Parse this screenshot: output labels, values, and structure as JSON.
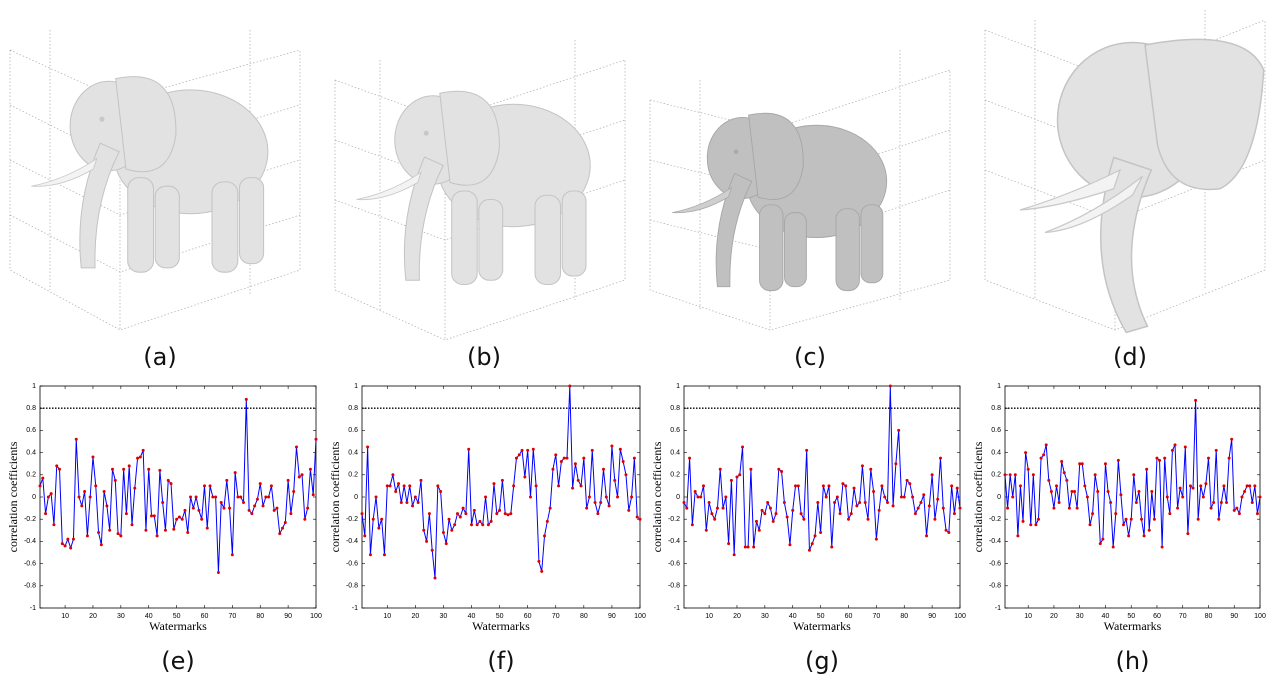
{
  "renders": [
    {
      "caption": "(a)"
    },
    {
      "caption": "(b)"
    },
    {
      "caption": "(c)"
    },
    {
      "caption": "(d)"
    }
  ],
  "chart_data": [
    {
      "type": "line",
      "caption": "(e)",
      "xlabel": "Watermarks",
      "ylabel": "correlation coefficients",
      "x": [
        1,
        2,
        3,
        4,
        5,
        6,
        7,
        8,
        9,
        10,
        11,
        12,
        13,
        14,
        15,
        16,
        17,
        18,
        19,
        20,
        21,
        22,
        23,
        24,
        25,
        26,
        27,
        28,
        29,
        30,
        31,
        32,
        33,
        34,
        35,
        36,
        37,
        38,
        39,
        40,
        41,
        42,
        43,
        44,
        45,
        46,
        47,
        48,
        49,
        50,
        51,
        52,
        53,
        54,
        55,
        56,
        57,
        58,
        59,
        60,
        61,
        62,
        63,
        64,
        65,
        66,
        67,
        68,
        69,
        70,
        71,
        72,
        73,
        74,
        75,
        76,
        77,
        78,
        79,
        80,
        81,
        82,
        83,
        84,
        85,
        86,
        87,
        88,
        89,
        90,
        91,
        92,
        93,
        94,
        95,
        96,
        97,
        98,
        99,
        100
      ],
      "series": [
        {
          "color": "#0000ff",
          "marker_color": "#dd0000",
          "values": [
            0.1,
            0.17,
            -0.15,
            0.0,
            0.03,
            -0.25,
            0.28,
            0.25,
            -0.42,
            -0.44,
            -0.38,
            -0.46,
            -0.38,
            0.52,
            0.0,
            -0.08,
            0.05,
            -0.35,
            0.0,
            0.36,
            0.1,
            -0.32,
            -0.43,
            0.05,
            -0.08,
            -0.3,
            0.25,
            0.15,
            -0.33,
            -0.35,
            0.25,
            -0.15,
            0.28,
            -0.25,
            0.08,
            0.35,
            0.36,
            0.42,
            -0.3,
            0.25,
            -0.17,
            -0.17,
            -0.35,
            0.24,
            -0.05,
            -0.3,
            0.15,
            0.12,
            -0.29,
            -0.2,
            -0.18,
            -0.2,
            -0.12,
            -0.32,
            0.0,
            -0.1,
            0.0,
            -0.12,
            -0.2,
            0.1,
            -0.28,
            0.1,
            0.0,
            0.0,
            -0.68,
            -0.05,
            -0.1,
            0.15,
            -0.1,
            -0.52,
            0.22,
            0.0,
            0.0,
            -0.05,
            0.88,
            -0.12,
            -0.15,
            -0.08,
            -0.02,
            0.12,
            -0.08,
            0.0,
            0.0,
            0.1,
            -0.12,
            -0.1,
            -0.33,
            -0.28,
            -0.23,
            0.15,
            -0.15,
            0.05,
            0.45,
            0.18,
            0.2,
            -0.2,
            -0.1,
            0.25,
            0.02,
            0.52
          ]
        }
      ],
      "threshold": 0.8,
      "xlim": [
        1,
        100
      ],
      "xticks": [
        10,
        20,
        30,
        40,
        50,
        60,
        70,
        80,
        90,
        100
      ],
      "ylim": [
        -1,
        1
      ],
      "yticks": [
        -1,
        -0.8,
        -0.6,
        -0.4,
        -0.2,
        0,
        0.2,
        0.4,
        0.6,
        0.8,
        1
      ]
    },
    {
      "type": "line",
      "caption": "(f)",
      "xlabel": "Watermarks",
      "ylabel": "correlation coefficients",
      "x": [
        1,
        2,
        3,
        4,
        5,
        6,
        7,
        8,
        9,
        10,
        11,
        12,
        13,
        14,
        15,
        16,
        17,
        18,
        19,
        20,
        21,
        22,
        23,
        24,
        25,
        26,
        27,
        28,
        29,
        30,
        31,
        32,
        33,
        34,
        35,
        36,
        37,
        38,
        39,
        40,
        41,
        42,
        43,
        44,
        45,
        46,
        47,
        48,
        49,
        50,
        51,
        52,
        53,
        54,
        55,
        56,
        57,
        58,
        59,
        60,
        61,
        62,
        63,
        64,
        65,
        66,
        67,
        68,
        69,
        70,
        71,
        72,
        73,
        74,
        75,
        76,
        77,
        78,
        79,
        80,
        81,
        82,
        83,
        84,
        85,
        86,
        87,
        88,
        89,
        90,
        91,
        92,
        93,
        94,
        95,
        96,
        97,
        98,
        99,
        100
      ],
      "series": [
        {
          "color": "#0000ff",
          "marker_color": "#dd0000",
          "values": [
            -0.15,
            -0.35,
            0.45,
            -0.52,
            -0.2,
            0.0,
            -0.28,
            -0.2,
            -0.52,
            0.1,
            0.1,
            0.2,
            0.05,
            0.12,
            -0.05,
            0.1,
            -0.05,
            0.1,
            -0.08,
            0.0,
            -0.05,
            0.15,
            -0.3,
            -0.4,
            -0.15,
            -0.48,
            -0.73,
            0.1,
            0.05,
            -0.32,
            -0.42,
            -0.2,
            -0.3,
            -0.25,
            -0.15,
            -0.18,
            -0.1,
            -0.15,
            0.43,
            -0.25,
            -0.12,
            -0.25,
            -0.22,
            -0.25,
            0.0,
            -0.25,
            -0.22,
            0.12,
            -0.15,
            -0.12,
            0.15,
            -0.15,
            -0.16,
            -0.15,
            0.1,
            0.35,
            0.38,
            0.42,
            0.18,
            0.42,
            0.0,
            0.43,
            0.1,
            -0.58,
            -0.67,
            -0.35,
            -0.22,
            -0.1,
            0.25,
            0.38,
            0.1,
            0.32,
            0.35,
            0.35,
            1.0,
            0.08,
            0.3,
            0.15,
            0.1,
            0.35,
            -0.1,
            0.0,
            0.42,
            -0.05,
            -0.15,
            -0.05,
            0.25,
            0.0,
            -0.08,
            0.46,
            0.15,
            0.0,
            0.43,
            0.32,
            0.2,
            -0.12,
            0.0,
            0.35,
            -0.18,
            -0.2
          ]
        }
      ],
      "threshold": 0.8,
      "xlim": [
        1,
        100
      ],
      "xticks": [
        10,
        20,
        30,
        40,
        50,
        60,
        70,
        80,
        90,
        100
      ],
      "ylim": [
        -1,
        1
      ],
      "yticks": [
        -1,
        -0.8,
        -0.6,
        -0.4,
        -0.2,
        0,
        0.2,
        0.4,
        0.6,
        0.8,
        1
      ]
    },
    {
      "type": "line",
      "caption": "(g)",
      "xlabel": "Watermarks",
      "ylabel": "correlation coefficients",
      "x": [
        1,
        2,
        3,
        4,
        5,
        6,
        7,
        8,
        9,
        10,
        11,
        12,
        13,
        14,
        15,
        16,
        17,
        18,
        19,
        20,
        21,
        22,
        23,
        24,
        25,
        26,
        27,
        28,
        29,
        30,
        31,
        32,
        33,
        34,
        35,
        36,
        37,
        38,
        39,
        40,
        41,
        42,
        43,
        44,
        45,
        46,
        47,
        48,
        49,
        50,
        51,
        52,
        53,
        54,
        55,
        56,
        57,
        58,
        59,
        60,
        61,
        62,
        63,
        64,
        65,
        66,
        67,
        68,
        69,
        70,
        71,
        72,
        73,
        74,
        75,
        76,
        77,
        78,
        79,
        80,
        81,
        82,
        83,
        84,
        85,
        86,
        87,
        88,
        89,
        90,
        91,
        92,
        93,
        94,
        95,
        96,
        97,
        98,
        99,
        100
      ],
      "series": [
        {
          "color": "#0000ff",
          "marker_color": "#dd0000",
          "values": [
            -0.05,
            -0.1,
            0.35,
            -0.25,
            0.05,
            0.0,
            0.0,
            0.1,
            -0.3,
            -0.05,
            -0.15,
            -0.2,
            -0.1,
            0.25,
            -0.1,
            0.0,
            -0.42,
            0.15,
            -0.52,
            0.18,
            0.2,
            0.45,
            -0.45,
            -0.45,
            0.25,
            -0.45,
            -0.22,
            -0.3,
            -0.12,
            -0.15,
            -0.05,
            -0.1,
            -0.22,
            -0.15,
            0.25,
            0.23,
            -0.05,
            -0.18,
            -0.43,
            -0.12,
            0.1,
            0.1,
            -0.15,
            -0.2,
            0.42,
            -0.48,
            -0.42,
            -0.35,
            -0.05,
            -0.32,
            0.1,
            0.0,
            0.1,
            -0.45,
            -0.05,
            0.0,
            -0.15,
            0.12,
            0.1,
            -0.2,
            -0.15,
            0.08,
            -0.08,
            -0.05,
            0.28,
            -0.05,
            -0.2,
            0.25,
            0.05,
            -0.38,
            -0.12,
            0.1,
            0.0,
            -0.05,
            1.0,
            -0.08,
            0.3,
            0.6,
            0.0,
            0.0,
            0.15,
            0.12,
            0.0,
            -0.15,
            -0.1,
            -0.05,
            0.02,
            -0.35,
            -0.08,
            0.2,
            -0.2,
            -0.02,
            0.35,
            -0.1,
            -0.3,
            -0.32,
            0.1,
            -0.15,
            0.08,
            -0.1
          ]
        }
      ],
      "threshold": 0.8,
      "xlim": [
        1,
        100
      ],
      "xticks": [
        10,
        20,
        30,
        40,
        50,
        60,
        70,
        80,
        90,
        100
      ],
      "ylim": [
        -1,
        1
      ],
      "yticks": [
        -1,
        -0.8,
        -0.6,
        -0.4,
        -0.2,
        0,
        0.2,
        0.4,
        0.6,
        0.8,
        1
      ]
    },
    {
      "type": "line",
      "caption": "(h)",
      "xlabel": "Watermarks",
      "ylabel": "correlation coefficients",
      "x": [
        1,
        2,
        3,
        4,
        5,
        6,
        7,
        8,
        9,
        10,
        11,
        12,
        13,
        14,
        15,
        16,
        17,
        18,
        19,
        20,
        21,
        22,
        23,
        24,
        25,
        26,
        27,
        28,
        29,
        30,
        31,
        32,
        33,
        34,
        35,
        36,
        37,
        38,
        39,
        40,
        41,
        42,
        43,
        44,
        45,
        46,
        47,
        48,
        49,
        50,
        51,
        52,
        53,
        54,
        55,
        56,
        57,
        58,
        59,
        60,
        61,
        62,
        63,
        64,
        65,
        66,
        67,
        68,
        69,
        70,
        71,
        72,
        73,
        74,
        75,
        76,
        77,
        78,
        79,
        80,
        81,
        82,
        83,
        84,
        85,
        86,
        87,
        88,
        89,
        90,
        91,
        92,
        93,
        94,
        95,
        96,
        97,
        98,
        99,
        100
      ],
      "series": [
        {
          "color": "#0000ff",
          "marker_color": "#dd0000",
          "values": [
            0.2,
            -0.1,
            0.2,
            0.0,
            0.2,
            -0.35,
            0.1,
            -0.22,
            0.4,
            0.25,
            -0.25,
            0.2,
            -0.25,
            -0.2,
            0.35,
            0.38,
            0.47,
            0.15,
            0.05,
            -0.1,
            0.1,
            -0.05,
            0.32,
            0.22,
            0.15,
            -0.1,
            0.05,
            0.05,
            -0.1,
            0.3,
            0.3,
            0.1,
            0.0,
            -0.25,
            -0.15,
            0.2,
            0.05,
            -0.42,
            -0.38,
            0.3,
            0.05,
            -0.05,
            -0.45,
            -0.15,
            0.33,
            0.02,
            -0.25,
            -0.2,
            -0.35,
            -0.2,
            0.2,
            -0.05,
            0.05,
            -0.2,
            -0.35,
            0.25,
            -0.3,
            0.05,
            -0.2,
            0.35,
            0.33,
            -0.45,
            0.35,
            0.0,
            -0.15,
            0.42,
            0.47,
            -0.1,
            0.08,
            0.0,
            0.45,
            -0.33,
            0.1,
            0.08,
            0.87,
            -0.2,
            0.1,
            0.0,
            0.12,
            0.35,
            -0.1,
            -0.05,
            0.42,
            -0.2,
            -0.05,
            0.1,
            -0.05,
            0.35,
            0.52,
            -0.12,
            -0.1,
            -0.15,
            0.0,
            0.05,
            0.1,
            0.1,
            -0.05,
            0.1,
            -0.15,
            0.0
          ]
        }
      ],
      "threshold": 0.8,
      "xlim": [
        1,
        100
      ],
      "xticks": [
        10,
        20,
        30,
        40,
        50,
        60,
        70,
        80,
        90,
        100
      ],
      "ylim": [
        -1,
        1
      ],
      "yticks": [
        -1,
        -0.8,
        -0.6,
        -0.4,
        -0.2,
        0,
        0.2,
        0.4,
        0.6,
        0.8,
        1
      ]
    }
  ]
}
